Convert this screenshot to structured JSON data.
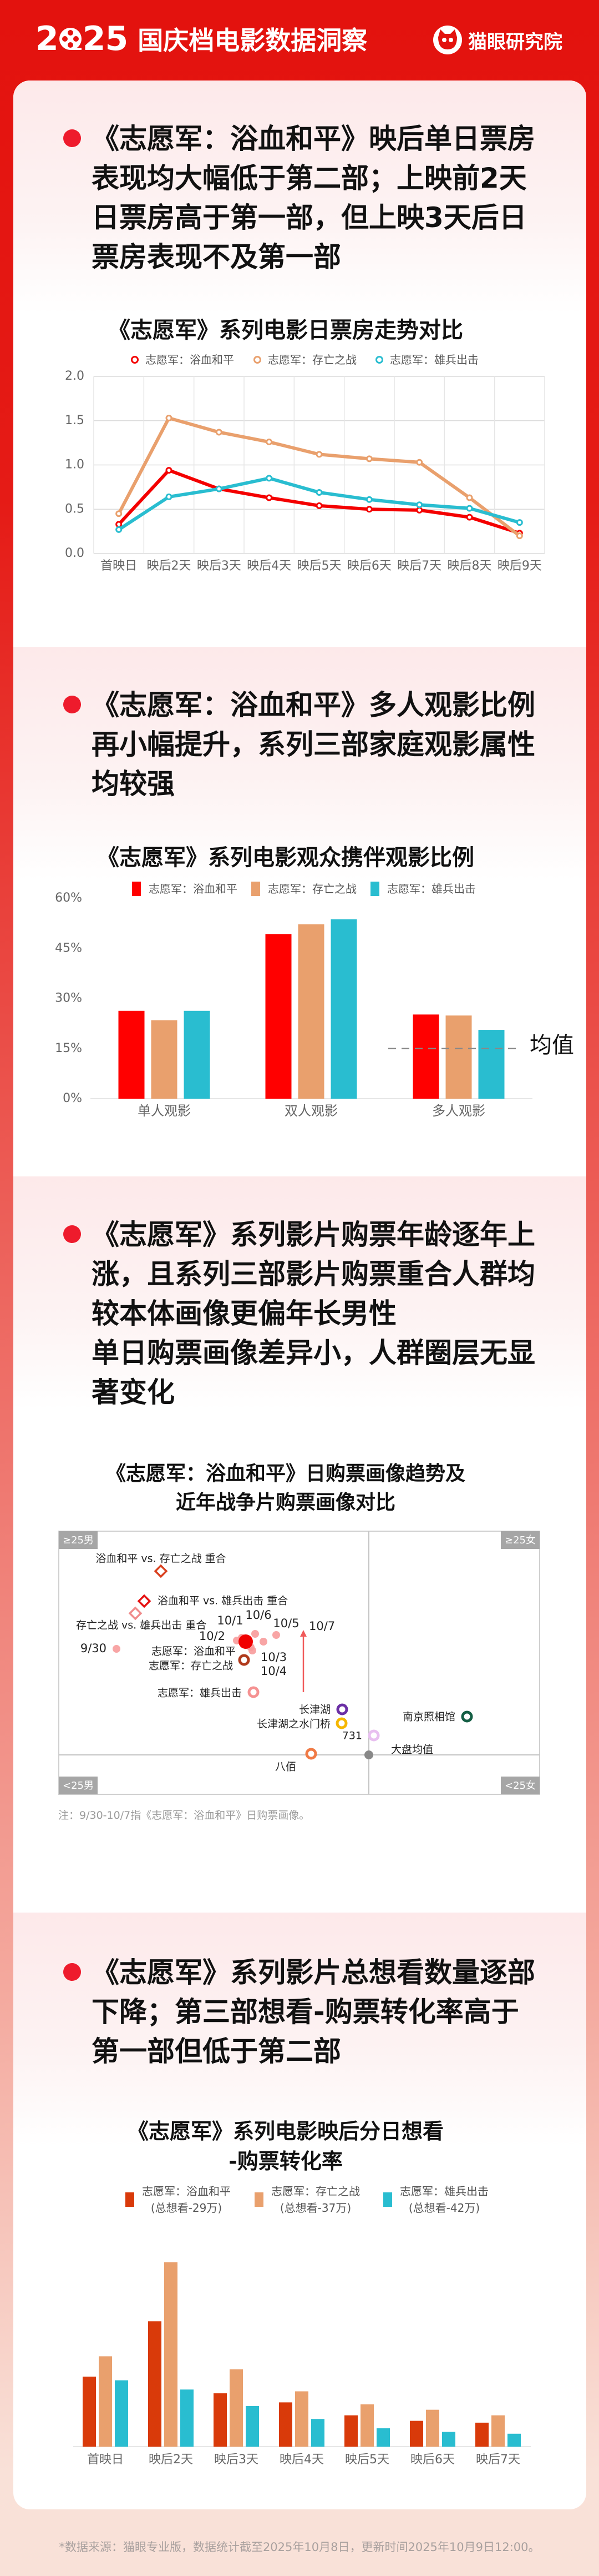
{
  "header": {
    "year": "2025",
    "title": "国庆档电影数据洞察",
    "brand": "猫眼研究院"
  },
  "colors": {
    "red": "#f40000",
    "orange": "#e9a06d",
    "cyan": "#29bdd0",
    "dark_red": "#d93a0a",
    "bullet": "#ee1b2c"
  },
  "sections": [
    {
      "headline": [
        "《志愿军：浴血和平》映后单日票房",
        "表现均大幅低于第二部；上映前2天",
        "日票房高于第一部，但上映3天后日",
        "票房表现不及第一部"
      ]
    },
    {
      "headline": [
        "《志愿军：浴血和平》多人观影比例",
        "再小幅提升，系列三部家庭观影属性",
        "均较强"
      ]
    },
    {
      "headline": [
        "《志愿军》系列影片购票年龄逐年上",
        "涨，且系列三部影片购票重合人群均",
        "较本体画像更偏年长男性",
        "单日购票画像差异小，人群圈层无显",
        "著变化"
      ]
    },
    {
      "headline": [
        "《志愿军》系列影片总想看数量逐部",
        "下降；第三部想看-购票转化率高于",
        "第一部但低于第二部"
      ]
    }
  ],
  "chart_data": [
    {
      "type": "line",
      "title": "《志愿军》系列电影日票房走势对比",
      "categories": [
        "首映日",
        "映后2天",
        "映后3天",
        "映后4天",
        "映后5天",
        "映后6天",
        "映后7天",
        "映后8天",
        "映后9天"
      ],
      "ylim": [
        0,
        2.0
      ],
      "yticks": [
        "0.0",
        "0.5",
        "1.0",
        "1.5",
        "2.0"
      ],
      "grid": true,
      "legend": "top",
      "series": [
        {
          "name": "志愿军：浴血和平",
          "color": "#f40000",
          "values": [
            0.33,
            0.94,
            0.73,
            0.63,
            0.54,
            0.5,
            0.49,
            0.41,
            0.23
          ]
        },
        {
          "name": "志愿军：存亡之战",
          "color": "#e9a06d",
          "values": [
            0.45,
            1.53,
            1.37,
            1.26,
            1.12,
            1.07,
            1.03,
            0.63,
            0.2
          ]
        },
        {
          "name": "志愿军：雄兵出击",
          "color": "#29bdd0",
          "values": [
            0.27,
            0.64,
            0.73,
            0.85,
            0.69,
            0.61,
            0.55,
            0.51,
            0.35
          ]
        }
      ]
    },
    {
      "type": "bar",
      "title": "《志愿军》系列电影观众携伴观影比例",
      "categories": [
        "单人观影",
        "双人观影",
        "多人观影"
      ],
      "ylim": [
        0,
        60
      ],
      "yticks": [
        "0%",
        "15%",
        "30%",
        "45%",
        "60%"
      ],
      "legend": "top",
      "reference_line": {
        "label": "均值",
        "value": 15
      },
      "series": [
        {
          "name": "志愿军：浴血和平",
          "color": "#ff0000",
          "values": [
            26.3,
            49.3,
            25.2
          ]
        },
        {
          "name": "志愿军：存亡之战",
          "color": "#e9a06d",
          "values": [
            23.5,
            52.2,
            24.9
          ]
        },
        {
          "name": "志愿军：雄兵出击",
          "color": "#29bdd0",
          "values": [
            26.3,
            53.7,
            20.6
          ]
        }
      ]
    },
    {
      "type": "scatter",
      "title": [
        "《志愿军：浴血和平》日购票画像趋势及",
        "近年战争片购票画像对比"
      ],
      "quadrants": {
        "top_left": "≥25男",
        "top_right": "≥25女",
        "bottom_left": "<25男",
        "bottom_right": "<25女"
      },
      "xlim": [
        -55.9,
        30.8
      ],
      "ylim": [
        -7.1,
        40.3
      ],
      "note": "注：9/30-10/7指《志愿军：浴血和平》日购票画像。",
      "points": [
        {
          "label": "浴血和平 vs. 存亡之战 重合",
          "x": -37.5,
          "y": 33.1,
          "shape": "diamond",
          "color": "#d9401e"
        },
        {
          "label": "浴血和平 vs. 雄兵出击 重合",
          "x": -40.5,
          "y": 27.7,
          "shape": "diamond",
          "color": "#e51010"
        },
        {
          "label": "存亡之战 vs. 雄兵出击 重合",
          "x": -42.1,
          "y": 25.5,
          "shape": "diamond",
          "color": "#f08c8c"
        },
        {
          "label": "9/30",
          "x": -45.5,
          "y": 19.1,
          "shape": "dot",
          "color": "#f79b9b"
        },
        {
          "label": "10/2",
          "x": -23.8,
          "y": 20.6,
          "shape": "dot",
          "color": "#f79b9b"
        },
        {
          "label": "10/1",
          "x": -22.9,
          "y": 21.1,
          "shape": "dot",
          "color": "#f79b9b"
        },
        {
          "label": "10/6",
          "x": -20.5,
          "y": 21.8,
          "shape": "dot",
          "color": "#f79b9b"
        },
        {
          "label": "10/5",
          "x": -19.0,
          "y": 20.4,
          "shape": "dot",
          "color": "#f79b9b"
        },
        {
          "label": "10/7",
          "x": -16.7,
          "y": 21.6,
          "shape": "dot",
          "color": "#f79b9b"
        },
        {
          "label": "10/3",
          "x": -21.3,
          "y": 19.4,
          "shape": "dot",
          "color": "#f79b9b"
        },
        {
          "label": "10/4",
          "x": -21.0,
          "y": 18.8,
          "shape": "dot",
          "color": "#f79b9b"
        },
        {
          "label": "志愿军：浴血和平",
          "x": -22.2,
          "y": 20.4,
          "shape": "bigdot",
          "color": "#f00000"
        },
        {
          "label": "志愿军：存亡之战",
          "x": -22.5,
          "y": 17.1,
          "shape": "ring",
          "color": "#b03a1c"
        },
        {
          "label": "志愿军：雄兵出击",
          "x": -20.8,
          "y": 11.3,
          "shape": "ring",
          "color": "#f59292"
        },
        {
          "label": "长津湖",
          "x": -4.8,
          "y": 8.2,
          "shape": "ring",
          "color": "#6b2fa5"
        },
        {
          "label": "长津湖之水门桥",
          "x": -4.9,
          "y": 5.7,
          "shape": "ring",
          "color": "#f5b700"
        },
        {
          "label": "731",
          "x": 0.9,
          "y": 3.5,
          "shape": "ring",
          "color": "#e8c0f0"
        },
        {
          "label": "八佰",
          "x": -10.4,
          "y": 0.2,
          "shape": "ring",
          "color": "#f07a45"
        },
        {
          "label": "南京照相馆",
          "x": 17.7,
          "y": 6.9,
          "shape": "ring",
          "color": "#155f45"
        },
        {
          "label": "大盘均值",
          "x": 0,
          "y": 0,
          "shape": "avg",
          "color": "#888888"
        }
      ],
      "trend_arrow": {
        "x": -11.8,
        "from_y": 11.3,
        "to_y": 22.3,
        "color": "#f05a5a"
      }
    },
    {
      "type": "bar",
      "title": [
        "《志愿军》系列电影映后分日想看",
        "-购票转化率"
      ],
      "categories": [
        "首映日",
        "映后2天",
        "映后3天",
        "映后4天",
        "映后5天",
        "映后6天",
        "映后7天"
      ],
      "ylim": [
        0,
        10
      ],
      "legend": "top",
      "series": [
        {
          "name": "志愿军：浴血和平",
          "note": "(总想看-29万)",
          "color": "#d93a0a",
          "values": [
            3.8,
            6.8,
            2.9,
            2.4,
            1.7,
            1.4,
            1.3
          ]
        },
        {
          "name": "志愿军：存亡之战",
          "note": "(总想看-37万)",
          "color": "#e9a06d",
          "values": [
            4.9,
            10.0,
            4.2,
            3.0,
            2.3,
            2.0,
            1.7
          ]
        },
        {
          "name": "志愿军：雄兵出击",
          "note": "(总想看-42万)",
          "color": "#29bdd0",
          "values": [
            3.6,
            3.1,
            2.2,
            1.5,
            1.0,
            0.8,
            0.7
          ]
        }
      ]
    }
  ],
  "footer": "*数据来源：猫眼专业版，数据统计截至2025年10月8日，更新时间2025年10月9日12:00。"
}
